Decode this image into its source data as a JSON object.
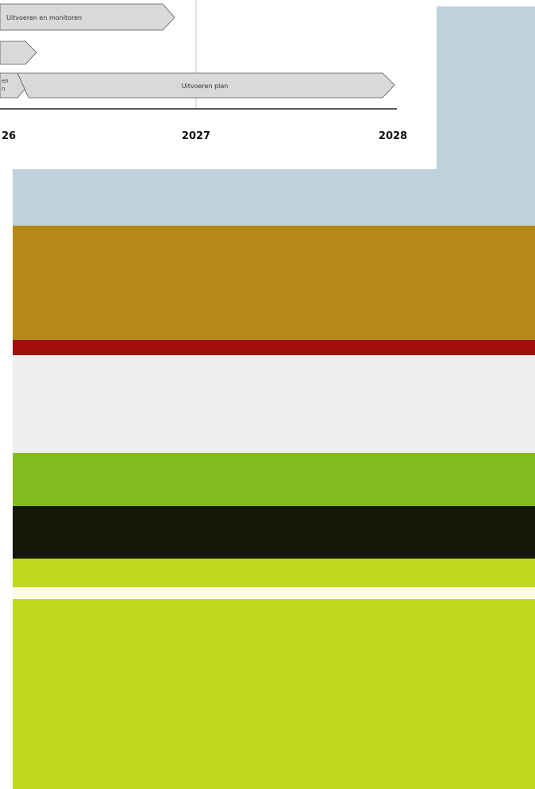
{
  "timeline": {
    "bars": [
      {
        "label": "Uitvoeren en monitoren"
      },
      {
        "label": ""
      },
      {
        "label_line1": "en",
        "label_line2": "n"
      },
      {
        "label": "Uitvoeren plan"
      }
    ],
    "years": [
      "26",
      "2027",
      "2028"
    ]
  },
  "colors": {
    "sky": "#bfd1db",
    "ochre": "#b58818",
    "red": "#a20d0d",
    "offwhite": "#efefef",
    "green": "#82bc1e",
    "black": "#151707",
    "lime": "#bfd71d",
    "cream": "#fbfbe6",
    "lime_large": "#bfd71d",
    "arrow_fill": "#d9d9d9",
    "arrow_stroke": "#555555"
  }
}
